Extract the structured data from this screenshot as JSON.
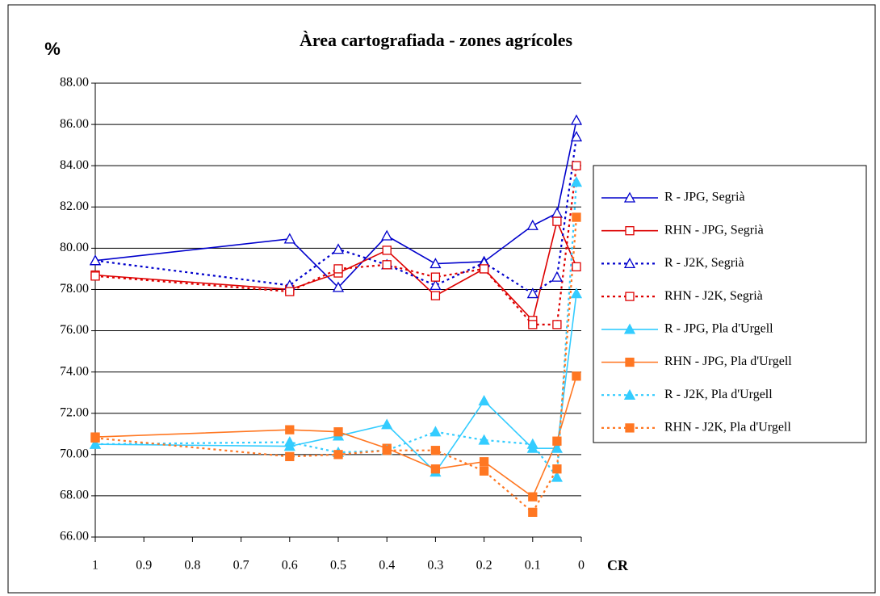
{
  "chart_data": {
    "type": "line",
    "title": "Àrea  cartografiada - zones agrícoles",
    "y_label": "%",
    "x_label": "CR",
    "x": [
      1,
      0.6,
      0.5,
      0.4,
      0.3,
      0.2,
      0.1,
      0.05,
      0.01
    ],
    "xlim": [
      1,
      0
    ],
    "xticks": [
      1,
      0.9,
      0.8,
      0.7,
      0.6,
      0.5,
      0.4,
      0.3,
      0.2,
      0.1,
      0
    ],
    "ylim": [
      66,
      88
    ],
    "yticks": [
      {
        "value": 66,
        "label": "66.00"
      },
      {
        "value": 68,
        "label": "68.00"
      },
      {
        "value": 70,
        "label": "70.00"
      },
      {
        "value": 72,
        "label": "72.00"
      },
      {
        "value": 74,
        "label": "74.00"
      },
      {
        "value": 76,
        "label": "76.00"
      },
      {
        "value": 78,
        "label": "78.00"
      },
      {
        "value": 80,
        "label": "80.00"
      },
      {
        "value": 82,
        "label": "82.00"
      },
      {
        "value": 84,
        "label": "84.00"
      },
      {
        "value": 86,
        "label": "86.00"
      },
      {
        "value": 88,
        "label": "88.00"
      }
    ],
    "grid": true,
    "legend": "right",
    "series": [
      {
        "name": "R - JPG, Segrià",
        "color": "#0000cc",
        "dash": "solid",
        "marker": "triangle-open",
        "values": [
          79.4,
          80.45,
          78.1,
          80.6,
          79.25,
          79.35,
          81.1,
          81.7,
          86.2
        ]
      },
      {
        "name": "RHN - JPG, Segrià",
        "color": "#dd0000",
        "dash": "solid",
        "marker": "square-open",
        "values": [
          78.7,
          78.0,
          78.8,
          79.9,
          77.7,
          79.0,
          76.5,
          81.3,
          79.1
        ]
      },
      {
        "name": "R - J2K, Segrià",
        "color": "#0000cc",
        "dash": "dotted",
        "marker": "triangle-open",
        "values": [
          79.4,
          78.2,
          79.95,
          79.2,
          78.2,
          79.3,
          77.8,
          78.6,
          85.4
        ]
      },
      {
        "name": "RHN - J2K, Segrià",
        "color": "#dd0000",
        "dash": "dotted",
        "marker": "square-open",
        "values": [
          78.65,
          77.9,
          79.0,
          79.2,
          78.6,
          79.0,
          76.3,
          76.3,
          84.0
        ]
      },
      {
        "name": "R - JPG, Pla d'Urgell",
        "color": "#33ccff",
        "dash": "solid",
        "marker": "triangle",
        "values": [
          70.5,
          70.4,
          70.9,
          71.45,
          69.15,
          72.6,
          70.3,
          70.3,
          77.8
        ]
      },
      {
        "name": "RHN - JPG, Pla d'Urgell",
        "color": "#ff7722",
        "dash": "solid",
        "marker": "square",
        "values": [
          70.85,
          71.2,
          71.1,
          70.3,
          69.3,
          69.65,
          67.95,
          70.65,
          73.8
        ]
      },
      {
        "name": "R - J2K, Pla d'Urgell",
        "color": "#33ccff",
        "dash": "dotted",
        "marker": "triangle",
        "values": [
          70.5,
          70.6,
          70.1,
          70.2,
          71.1,
          70.7,
          70.5,
          68.9,
          83.2
        ]
      },
      {
        "name": "RHN - J2K, Pla d'Urgell",
        "color": "#ff7722",
        "dash": "dotted",
        "marker": "square",
        "values": [
          70.8,
          69.9,
          70.0,
          70.2,
          70.2,
          69.2,
          67.2,
          69.3,
          81.5
        ]
      }
    ]
  }
}
